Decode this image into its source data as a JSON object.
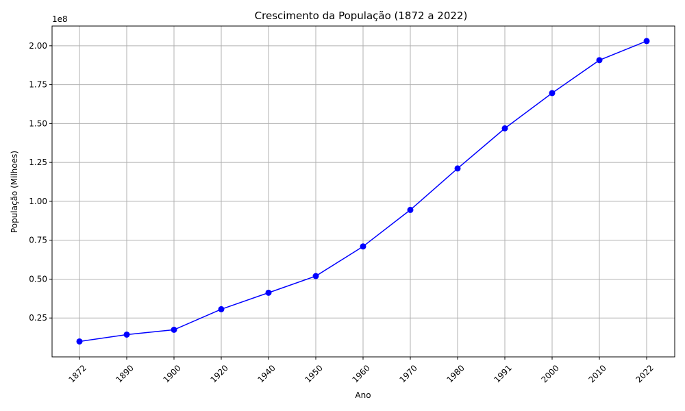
{
  "chart_data": {
    "type": "line",
    "title": "Crescimento da População (1872 a 2022)",
    "xlabel": "Ano",
    "ylabel": "População (Milhoes)",
    "y_multiplier_label": "1e8",
    "categories": [
      "1872",
      "1890",
      "1900",
      "1920",
      "1940",
      "1950",
      "1960",
      "1970",
      "1980",
      "1991",
      "2000",
      "2010",
      "2022"
    ],
    "series": [
      {
        "values": [
          9930478,
          14333915,
          17438434,
          30635605,
          41236315,
          51944397,
          70992343,
          94508583,
          121150573,
          146917459,
          169590693,
          190755799,
          203062512
        ],
        "color": "#0000ff",
        "marker": "circle"
      }
    ],
    "yticks": [
      0.25,
      0.5,
      0.75,
      1.0,
      1.25,
      1.5,
      1.75,
      2.0
    ],
    "ytick_labels": [
      "0.25",
      "0.50",
      "0.75",
      "1.00",
      "1.25",
      "1.50",
      "1.75",
      "2.00"
    ],
    "ylim": [
      0,
      212700000
    ],
    "grid": true,
    "axis_color": "#000000",
    "grid_color": "#b0b0b0"
  }
}
